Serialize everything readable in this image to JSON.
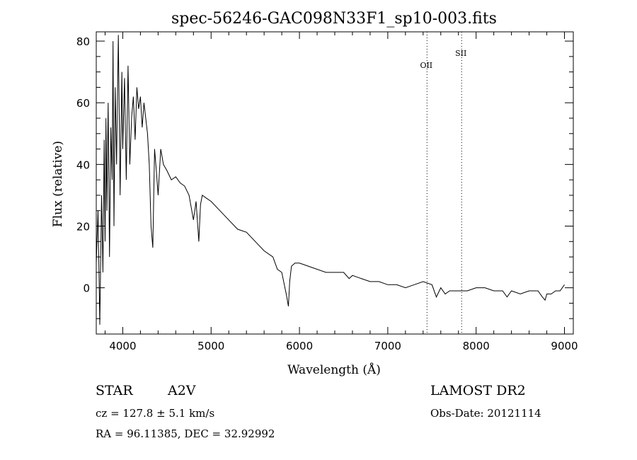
{
  "chart_data": {
    "type": "line",
    "title": "spec-56246-GAC098N33F1_sp10-003.fits",
    "xlabel": "Wavelength (Å)",
    "ylabel": "Flux (relative)",
    "xlim": [
      3700,
      9100
    ],
    "ylim": [
      -15,
      83
    ],
    "xticks": [
      4000,
      5000,
      6000,
      7000,
      8000,
      9000
    ],
    "yticks": [
      0,
      20,
      40,
      60,
      80
    ],
    "grid": false,
    "line_color": "#000000",
    "series": [
      {
        "x": [
          3700,
          3720,
          3740,
          3760,
          3775,
          3790,
          3800,
          3810,
          3820,
          3835,
          3850,
          3865,
          3880,
          3890,
          3900,
          3915,
          3930,
          3950,
          3970,
          3990,
          4000,
          4020,
          4040,
          4060,
          4080,
          4100,
          4120,
          4140,
          4160,
          4180,
          4200,
          4220,
          4240,
          4260,
          4280,
          4300,
          4320,
          4340,
          4360,
          4380,
          4400,
          4430,
          4460,
          4500,
          4550,
          4600,
          4650,
          4700,
          4750,
          4800,
          4830,
          4861,
          4880,
          4900,
          4950,
          5000,
          5100,
          5200,
          5300,
          5400,
          5500,
          5600,
          5700,
          5750,
          5800,
          5850,
          5875,
          5890,
          5910,
          5950,
          6000,
          6100,
          6200,
          6300,
          6400,
          6500,
          6563,
          6600,
          6700,
          6800,
          6900,
          7000,
          7100,
          7200,
          7300,
          7400,
          7500,
          7550,
          7600,
          7650,
          7700,
          7800,
          7900,
          8000,
          8100,
          8200,
          8300,
          8350,
          8400,
          8500,
          8600,
          8700,
          8750,
          8780,
          8800,
          8850,
          8900,
          8950,
          9000
        ],
        "y": [
          8,
          25,
          -12,
          30,
          5,
          48,
          15,
          55,
          25,
          60,
          10,
          52,
          35,
          80,
          20,
          65,
          40,
          82,
          30,
          70,
          45,
          68,
          35,
          72,
          40,
          55,
          62,
          48,
          65,
          58,
          62,
          52,
          60,
          55,
          50,
          40,
          20,
          13,
          45,
          38,
          30,
          45,
          40,
          38,
          35,
          36,
          34,
          33,
          30,
          22,
          28,
          15,
          27,
          30,
          29,
          28,
          25,
          22,
          19,
          18,
          15,
          12,
          10,
          6,
          5,
          -2,
          -6,
          2,
          7,
          8,
          8,
          7,
          6,
          5,
          5,
          5,
          3,
          4,
          3,
          2,
          2,
          1,
          1,
          0,
          1,
          2,
          1,
          -3,
          0,
          -2,
          -1,
          -1,
          -1,
          0,
          0,
          -1,
          -1,
          -3,
          -1,
          -2,
          -1,
          -1,
          -3,
          -4,
          -2,
          -2,
          -1,
          -1,
          1
        ]
      }
    ],
    "lines": [
      {
        "label": "OII",
        "x": 7444
      },
      {
        "label": "SII",
        "x": 7836
      }
    ]
  },
  "footer": {
    "object_type": "STAR",
    "subclass": "A2V",
    "survey": "LAMOST DR2",
    "redshift": "cz = 127.8 ± 5.1 km/s",
    "obs_date": "Obs-Date: 20121114",
    "coords": "RA =  96.11385, DEC =  32.92992"
  }
}
